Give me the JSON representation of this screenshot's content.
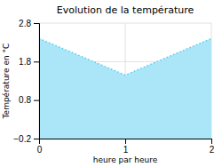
{
  "chart_data": {
    "type": "area",
    "title": "Evolution de la température",
    "xlabel": "heure par heure",
    "ylabel": "Température en °C",
    "x": [
      0,
      1,
      2
    ],
    "values": [
      2.4,
      1.45,
      2.4
    ],
    "color": "#55ccee",
    "line_style": "dotted",
    "xlim": [
      0,
      2
    ],
    "ylim": [
      -0.2,
      2.8
    ],
    "xticks": [
      0,
      1,
      2
    ],
    "yticks": [
      {
        "value": -0.2,
        "label": "−0.2"
      },
      0.8,
      1.8,
      2.8
    ],
    "grid": true
  }
}
